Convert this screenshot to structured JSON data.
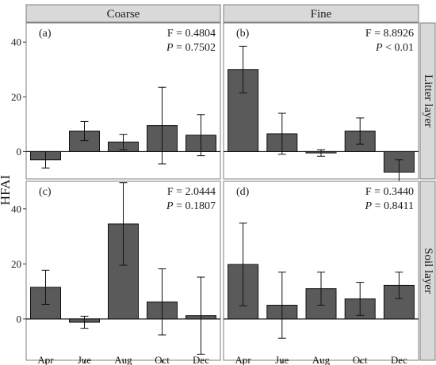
{
  "chart_data": {
    "type": "bar",
    "ylabel": "HFAI",
    "categories": [
      "Apr",
      "Jue",
      "Aug",
      "Oct",
      "Dec"
    ],
    "columns": [
      "Coarse",
      "Fine"
    ],
    "rows": [
      "Litter layer",
      "Soil layer"
    ],
    "yticks": [
      0,
      20,
      40
    ],
    "grid": false,
    "colors": {
      "bar": "#5a5a5a",
      "strip": "#d9d9d9",
      "axis": "#1a1a1a"
    },
    "panels": [
      {
        "id": "litter-coarse",
        "label": "(a)",
        "column": 0,
        "row": 0,
        "ylim": [
          -10,
          47
        ],
        "f_text": "F = 0.4804",
        "p_symbol": "P",
        "p_text": " = 0.7502",
        "values": [
          -3,
          7.5,
          3.5,
          9.5,
          6
        ],
        "error": [
          3,
          3.5,
          2.8,
          14,
          7.5
        ]
      },
      {
        "id": "litter-fine",
        "label": "(b)",
        "column": 1,
        "row": 0,
        "ylim": [
          -10,
          47
        ],
        "f_text": "F = 8.8926",
        "p_symbol": "P",
        "p_text": " < 0.01",
        "values": [
          30,
          6.5,
          -0.5,
          7.5,
          -7.5
        ],
        "error": [
          8.5,
          7.5,
          1.2,
          4.8,
          4.5
        ]
      },
      {
        "id": "soil-coarse",
        "label": "(c)",
        "column": 0,
        "row": 1,
        "ylim": [
          -15,
          50
        ],
        "f_text": "F = 2.0444",
        "p_symbol": "P",
        "p_text": " = 0.1807",
        "values": [
          11.5,
          -1.2,
          34.5,
          6.2,
          1.2
        ],
        "error": [
          6.2,
          2.2,
          15,
          12,
          14
        ]
      },
      {
        "id": "soil-fine",
        "label": "(d)",
        "column": 1,
        "row": 1,
        "ylim": [
          -15,
          50
        ],
        "f_text": "F = 0.3440",
        "p_symbol": "P",
        "p_text": " = 0.8411",
        "values": [
          19.8,
          5,
          11,
          7.3,
          12.2
        ],
        "error": [
          15,
          12,
          6,
          6,
          4.8
        ]
      }
    ]
  }
}
